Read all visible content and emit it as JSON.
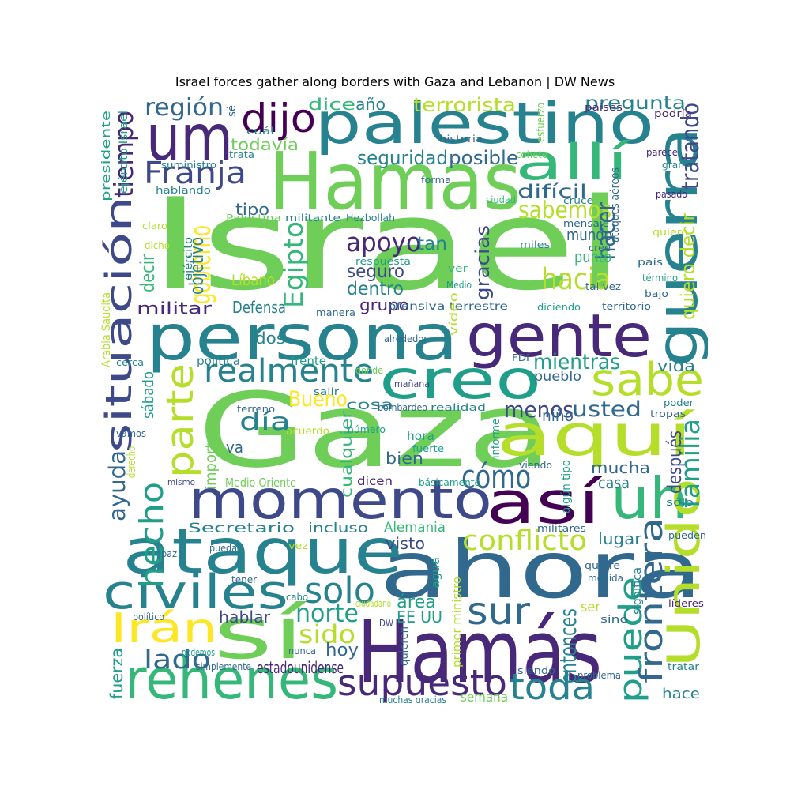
{
  "title": "Israel forces gather along borders with Gaza and Lebanon | DW News",
  "palette": [
    "#440154",
    "#482878",
    "#3e4989",
    "#31688e",
    "#26828e",
    "#1f9e89",
    "#35b779",
    "#6ece58",
    "#b5de2b",
    "#fde725"
  ],
  "words": [
    {
      "text": "Israel",
      "c": 7
    },
    {
      "text": "Gaza",
      "c": 7
    },
    {
      "text": "Hamas",
      "c": 7
    },
    {
      "text": "palestino",
      "c": 4
    },
    {
      "text": "persona",
      "c": 4
    },
    {
      "text": "ahora",
      "c": 3
    },
    {
      "text": "Hamás",
      "c": 1
    },
    {
      "text": "momento",
      "c": 2
    },
    {
      "text": "ataque",
      "c": 4
    },
    {
      "text": "gente",
      "c": 1
    },
    {
      "text": "guerra",
      "c": 4
    },
    {
      "text": "um",
      "c": 1
    },
    {
      "text": "creo",
      "c": 5
    },
    {
      "text": "aquí",
      "c": 8
    },
    {
      "text": "sabe",
      "c": 8
    },
    {
      "text": "así",
      "c": 0
    },
    {
      "text": "uh",
      "c": 6
    },
    {
      "text": "sí",
      "c": 7
    },
    {
      "text": "rehenes",
      "c": 6
    },
    {
      "text": "Unido",
      "c": 8
    },
    {
      "text": "allí",
      "c": 6
    },
    {
      "text": "situación",
      "c": 2
    },
    {
      "text": "civiles",
      "c": 4
    },
    {
      "text": "Irán",
      "c": 9
    },
    {
      "text": "supuesto",
      "c": 1
    },
    {
      "text": "toda",
      "c": 4
    },
    {
      "text": "parte",
      "c": 8
    },
    {
      "text": "dijo",
      "c": 0
    },
    {
      "text": "puede",
      "c": 5
    },
    {
      "text": "frontera",
      "c": 3
    },
    {
      "text": "realmente",
      "c": 4
    },
    {
      "text": "hecho",
      "c": 5
    },
    {
      "text": "cómo",
      "c": 3
    },
    {
      "text": "sur",
      "c": 3
    },
    {
      "text": "solo",
      "c": 4
    },
    {
      "text": "Franja",
      "c": 2
    },
    {
      "text": "conflicto",
      "c": 8
    },
    {
      "text": "sido",
      "c": 8
    },
    {
      "text": "lado",
      "c": 3
    },
    {
      "text": "norte",
      "c": 5
    },
    {
      "text": "hacia",
      "c": 8
    },
    {
      "text": "sabemos",
      "c": 8
    },
    {
      "text": "apoyo",
      "c": 1
    },
    {
      "text": "región",
      "c": 3
    },
    {
      "text": "tiempo",
      "c": 1
    },
    {
      "text": "Egipto",
      "c": 6
    },
    {
      "text": "gobierno",
      "c": 9
    },
    {
      "text": "día",
      "c": 4
    },
    {
      "text": "Bueno",
      "c": 9
    },
    {
      "text": "mientras",
      "c": 5
    },
    {
      "text": "usted",
      "c": 3
    },
    {
      "text": "menos",
      "c": 2
    },
    {
      "text": "familia",
      "c": 5
    },
    {
      "text": "hacer",
      "c": 3
    },
    {
      "text": "ayuda",
      "c": 3
    },
    {
      "text": "terrorista",
      "c": 8
    },
    {
      "text": "seguridad",
      "c": 4
    },
    {
      "text": "posible",
      "c": 3
    },
    {
      "text": "pregunta",
      "c": 4
    },
    {
      "text": "tratando",
      "c": 2
    },
    {
      "text": "quiero decir",
      "c": 8
    },
    {
      "text": "difícil",
      "c": 3
    },
    {
      "text": "tan",
      "c": 4
    },
    {
      "text": "seguro",
      "c": 2
    },
    {
      "text": "dentro",
      "c": 4
    },
    {
      "text": "grupo",
      "c": 1
    },
    {
      "text": "gracias",
      "c": 2
    },
    {
      "text": "mundo",
      "c": 3
    },
    {
      "text": "punto",
      "c": 6
    },
    {
      "text": "militar",
      "c": 1
    },
    {
      "text": "Defensa",
      "c": 4
    },
    {
      "text": "decir",
      "c": 6
    },
    {
      "text": "Líbano",
      "c": 8
    },
    {
      "text": "objetivo",
      "c": 4
    },
    {
      "text": "dice",
      "c": 6
    },
    {
      "text": "año",
      "c": 4
    },
    {
      "text": "todavía",
      "c": 7
    },
    {
      "text": "tipo",
      "c": 3
    },
    {
      "text": "mucha",
      "c": 3
    },
    {
      "text": "casa",
      "c": 4
    },
    {
      "text": "después",
      "c": 2
    },
    {
      "text": "lugar",
      "c": 4
    },
    {
      "text": "visto",
      "c": 2
    },
    {
      "text": "Alemania",
      "c": 6
    },
    {
      "text": "incluso",
      "c": 4
    },
    {
      "text": "Secretario",
      "c": 4
    },
    {
      "text": "bien",
      "c": 3
    },
    {
      "text": "va",
      "c": 3
    },
    {
      "text": "vida",
      "c": 4
    },
    {
      "text": "pueblo",
      "c": 3
    },
    {
      "text": "niño",
      "c": 3
    },
    {
      "text": "hablar",
      "c": 2
    },
    {
      "text": "hoy",
      "c": 3
    },
    {
      "text": "área",
      "c": 5
    },
    {
      "text": "EE UU",
      "c": 5
    },
    {
      "text": "entonces",
      "c": 4
    },
    {
      "text": "ser",
      "c": 8
    },
    {
      "text": "hace",
      "c": 4
    },
    {
      "text": "estadounidense",
      "c": 1
    },
    {
      "text": "semana",
      "c": 7
    },
    {
      "text": "fuerza",
      "c": 5
    },
    {
      "text": "dos",
      "c": 4
    },
    {
      "text": "cosa",
      "c": 4
    },
    {
      "text": "cualquier",
      "c": 6
    },
    {
      "text": "importante",
      "c": 7
    },
    {
      "text": "sábado",
      "c": 5
    },
    {
      "text": "hora",
      "c": 5
    },
    {
      "text": "dicen",
      "c": 1
    },
    {
      "text": "política",
      "c": 4
    },
    {
      "text": "frente",
      "c": 5
    },
    {
      "text": "ofensiva terrestre",
      "c": 3
    },
    {
      "text": "Medio Oriente",
      "c": 7
    },
    {
      "text": "vamos",
      "c": 3
    },
    {
      "text": "acuerdo",
      "c": 8
    },
    {
      "text": "número",
      "c": 5
    },
    {
      "text": "derecho",
      "c": 8
    },
    {
      "text": "mismo",
      "c": 2
    },
    {
      "text": "básicamente",
      "c": 5
    },
    {
      "text": "militares",
      "c": 3
    },
    {
      "text": "Hezbollah",
      "c": 4
    },
    {
      "text": "militante",
      "c": 4
    },
    {
      "text": "Palestina",
      "c": 7
    },
    {
      "text": "ejército",
      "c": 4
    },
    {
      "text": "respuesta",
      "c": 5
    },
    {
      "text": "suministro",
      "c": 4
    },
    {
      "text": "hablando",
      "c": 4
    },
    {
      "text": "historia",
      "c": 3
    },
    {
      "text": "forma",
      "c": 3
    },
    {
      "text": "ciudad",
      "c": 6
    },
    {
      "text": "miles",
      "c": 4
    },
    {
      "text": "cree",
      "c": 3
    },
    {
      "text": "Medio",
      "c": 5
    },
    {
      "text": "ver",
      "c": 6
    },
    {
      "text": "tal vez",
      "c": 3
    },
    {
      "text": "mensaje",
      "c": 3
    },
    {
      "text": "cruce",
      "c": 4
    },
    {
      "text": "ataques aéreos",
      "c": 3
    },
    {
      "text": "presidente",
      "c": 5
    },
    {
      "text": "ejército Israel",
      "c": 5
    },
    {
      "text": "sé",
      "c": 3
    },
    {
      "text": "cuál",
      "c": 4
    },
    {
      "text": "trata",
      "c": 4
    },
    {
      "text": "esfuerzo",
      "c": 7
    },
    {
      "text": "cohete",
      "c": 7
    },
    {
      "text": "países",
      "c": 1
    },
    {
      "text": "podría",
      "c": 1
    },
    {
      "text": "parece",
      "c": 1
    },
    {
      "text": "gran",
      "c": 4
    },
    {
      "text": "pasado",
      "c": 1
    },
    {
      "text": "quiero",
      "c": 8
    },
    {
      "text": "país",
      "c": 3
    },
    {
      "text": "término",
      "c": 5
    },
    {
      "text": "bajo",
      "c": 3
    },
    {
      "text": "territorio",
      "c": 3
    },
    {
      "text": "diciendo",
      "c": 5
    },
    {
      "text": "vídeo",
      "c": 8
    },
    {
      "text": "alrededor",
      "c": 3
    },
    {
      "text": "FDI",
      "c": 3
    },
    {
      "text": "dónde",
      "c": 7
    },
    {
      "text": "salir",
      "c": 4
    },
    {
      "text": "mañana",
      "c": 2
    },
    {
      "text": "bombardeo",
      "c": 3
    },
    {
      "text": "realidad",
      "c": 4
    },
    {
      "text": "terreno",
      "c": 3
    },
    {
      "text": "manera",
      "c": 3
    },
    {
      "text": "cerca",
      "c": 4
    },
    {
      "text": "claro",
      "c": 8
    },
    {
      "text": "dicho",
      "c": 8
    },
    {
      "text": "Arabia Saudita",
      "c": 8
    },
    {
      "text": "informe",
      "c": 5
    },
    {
      "text": "fuerte",
      "c": 5
    },
    {
      "text": "viendo",
      "c": 3
    },
    {
      "text": "algún tipo",
      "c": 5
    },
    {
      "text": "poder",
      "c": 4
    },
    {
      "text": "tropas",
      "c": 3
    },
    {
      "text": "sólo",
      "c": 4
    },
    {
      "text": "pueden",
      "c": 3
    },
    {
      "text": "quiere",
      "c": 3
    },
    {
      "text": "medida",
      "c": 3
    },
    {
      "text": "significa",
      "c": 4
    },
    {
      "text": "líderes",
      "c": 1
    },
    {
      "text": "sino",
      "c": 3
    },
    {
      "text": "tratar",
      "c": 4
    },
    {
      "text": "problema",
      "c": 3
    },
    {
      "text": "siendo",
      "c": 3
    },
    {
      "text": "muchas gracias",
      "c": 4
    },
    {
      "text": "quieren",
      "c": 3
    },
    {
      "text": "primer ministro",
      "c": 8
    },
    {
      "text": "DW",
      "c": 2
    },
    {
      "text": "agua",
      "c": 5
    },
    {
      "text": "ciudadano",
      "c": 8
    },
    {
      "text": "nunca",
      "c": 3
    },
    {
      "text": "simplemente",
      "c": 3
    },
    {
      "text": "podemos",
      "c": 5
    },
    {
      "text": "político",
      "c": 3
    },
    {
      "text": "cabo",
      "c": 4
    },
    {
      "text": "tener",
      "c": 3
    },
    {
      "text": "vez",
      "c": 8
    },
    {
      "text": "pueda",
      "c": 3
    },
    {
      "text": "paz",
      "c": 3
    }
  ]
}
